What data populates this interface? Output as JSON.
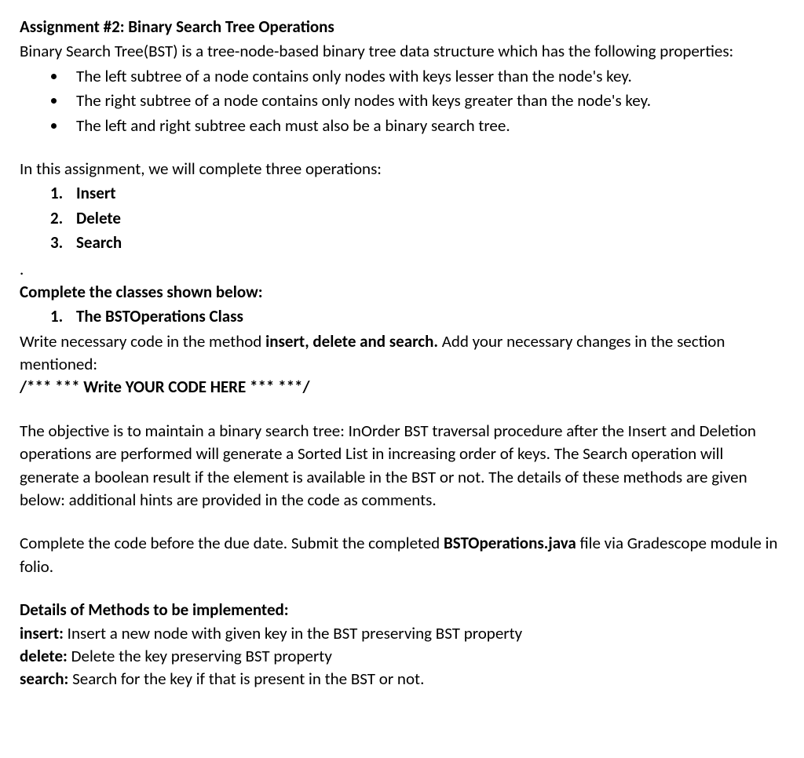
{
  "title": "Assignment #2: Binary Search Tree Operations",
  "intro": "Binary Search Tree(BST) is a tree-node-based binary tree data structure which has the following properties:",
  "bullets": [
    "The left subtree of a node contains only nodes with keys lesser than the node's key.",
    "The right subtree of a node contains only nodes with keys greater than the node's key.",
    "The left and right subtree each must also be a binary search tree."
  ],
  "assignment_intro": "In this assignment, we will complete three operations:",
  "operations": [
    "Insert",
    "Delete",
    "Search"
  ],
  "dot": ".",
  "complete_heading": "Complete the classes shown below:",
  "class_list": [
    "The BSTOperations Class"
  ],
  "write_code_pre": "Write necessary code in the method ",
  "write_code_bold": "insert, delete and search.",
  "write_code_post": " Add your necessary changes in the section mentioned:",
  "code_marker": "/*** *** Write YOUR CODE HERE *** ***/",
  "objective": "The objective is to maintain a binary search tree: InOrder BST traversal procedure after the Insert and Deletion operations are performed will generate a Sorted List in increasing order of keys. The Search operation will generate a boolean result if the element is available in the BST or not. The details of these methods are given below:  additional hints are provided in the code as comments.",
  "submit_pre": "Complete the code before the due date. Submit the completed ",
  "submit_bold": "BSTOperations.java",
  "submit_post": " file via Gradescope module in folio.",
  "details_heading": "Details of Methods to be implemented:",
  "methods": [
    {
      "name": "insert:",
      "desc": " Insert a new node with given key in the BST preserving BST property"
    },
    {
      "name": "delete:",
      "desc": " Delete the key preserving BST property"
    },
    {
      "name": "search:",
      "desc": " Search for the key if that is present in the BST or not."
    }
  ]
}
